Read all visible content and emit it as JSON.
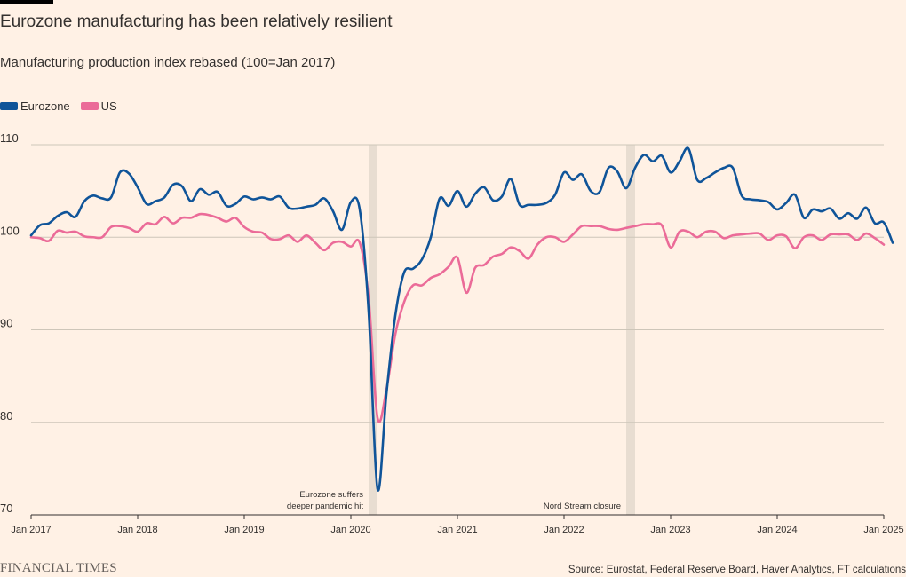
{
  "header": {
    "title": "Eurozone manufacturing has been relatively resilient",
    "subtitle": "Manufacturing production index rebased (100=Jan 2017)"
  },
  "footer": {
    "logo": "FINANCIAL TIMES",
    "source": "Source: Eurostat, Federal Reserve Board, Haver Analytics, FT calculations"
  },
  "colors": {
    "background": "#FFF1E5",
    "eurozone": "#0F5499",
    "us": "#EB6B98",
    "shade": "#E8DDD1",
    "grid": "#CEC6B9"
  },
  "chart_data": {
    "type": "line",
    "title": "Eurozone manufacturing has been relatively resilient",
    "subtitle": "Manufacturing production index rebased (100=Jan 2017)",
    "xlabel": "",
    "ylabel": "",
    "x_start": "2017-01",
    "x_ticks": [
      "Jan 2017",
      "Jan 2018",
      "Jan 2019",
      "Jan 2020",
      "Jan 2021",
      "Jan 2022",
      "Jan 2023",
      "Jan 2024",
      "Jan 2025"
    ],
    "y_ticks": [
      70,
      80,
      90,
      100,
      110
    ],
    "ylim": [
      70,
      110
    ],
    "xlim": [
      "2017-01",
      "2025-01"
    ],
    "grid": true,
    "legend_position": "top-left",
    "shaded_periods": [
      {
        "start": "2020-03",
        "end": "2020-04",
        "label_lines": [
          "Eurozone suffers",
          "deeper pandemic hit"
        ]
      },
      {
        "start": "2022-08",
        "end": "2022-09",
        "label_lines": [
          "Nord Stream closure"
        ]
      }
    ],
    "series": [
      {
        "name": "Eurozone",
        "color": "#0F5499",
        "values": [
          100.2,
          101.3,
          101.5,
          102.3,
          102.7,
          102.2,
          103.9,
          104.5,
          104.2,
          104.3,
          107.0,
          106.9,
          105.4,
          103.6,
          103.9,
          104.3,
          105.7,
          105.5,
          103.9,
          105.2,
          104.6,
          104.9,
          103.4,
          103.6,
          104.4,
          104.1,
          104.3,
          104.1,
          104.4,
          103.2,
          103.1,
          103.3,
          103.5,
          104.2,
          102.8,
          100.8,
          103.8,
          103.0,
          92.0,
          72.8,
          83.0,
          91.5,
          96.2,
          96.6,
          97.6,
          100.0,
          104.2,
          103.4,
          105.0,
          103.3,
          104.7,
          105.4,
          104.0,
          104.4,
          106.3,
          103.5,
          103.5,
          103.5,
          103.7,
          104.6,
          107.0,
          106.2,
          106.8,
          105.0,
          104.9,
          107.5,
          107.1,
          105.3,
          107.5,
          108.9,
          108.2,
          108.8,
          107.0,
          108.2,
          109.6,
          106.2,
          106.4,
          107.0,
          107.5,
          107.5,
          104.5,
          104.1,
          104.0,
          103.8,
          103.0,
          103.7,
          104.6,
          102.1,
          103.0,
          102.8,
          103.1,
          102.0,
          102.6,
          102.0,
          103.2,
          101.5,
          101.6,
          99.4
        ]
      },
      {
        "name": "US",
        "color": "#EB6B98",
        "values": [
          100.0,
          99.9,
          99.6,
          100.7,
          100.5,
          100.6,
          100.1,
          100.0,
          100.0,
          101.1,
          101.2,
          101.0,
          100.6,
          101.5,
          101.4,
          102.2,
          101.5,
          102.1,
          102.1,
          102.5,
          102.4,
          102.1,
          101.7,
          102.1,
          101.1,
          100.6,
          100.5,
          99.8,
          99.8,
          100.2,
          99.5,
          100.2,
          99.4,
          98.6,
          99.4,
          99.5,
          99.0,
          99.4,
          93.5,
          80.5,
          83.5,
          89.5,
          93.0,
          94.8,
          94.8,
          95.6,
          96.0,
          96.8,
          97.8,
          94.0,
          96.7,
          97.0,
          97.9,
          98.2,
          98.9,
          98.5,
          97.7,
          99.2,
          100.0,
          100.0,
          99.5,
          100.3,
          101.2,
          101.2,
          101.2,
          100.9,
          100.8,
          101.0,
          101.2,
          101.4,
          101.4,
          101.3,
          98.9,
          100.6,
          100.6,
          100.0,
          100.6,
          100.6,
          99.9,
          100.2,
          100.3,
          100.4,
          100.4,
          99.7,
          100.2,
          100.1,
          98.8,
          100.0,
          100.2,
          99.7,
          100.3,
          100.3,
          100.3,
          99.7,
          100.4,
          99.9,
          99.2
        ]
      }
    ]
  }
}
